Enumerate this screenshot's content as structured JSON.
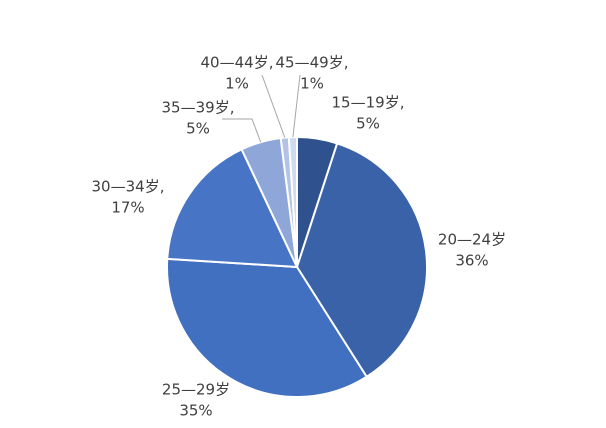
{
  "chart_data": {
    "type": "pie",
    "categories": [
      "15—19岁,",
      "20—24岁",
      "25—29岁",
      "30—34岁,",
      "35—39岁,",
      "40—44岁,",
      "45—49岁,"
    ],
    "values": [
      5,
      36,
      35,
      17,
      5,
      1,
      1
    ],
    "value_labels": [
      "5%",
      "36%",
      "35%",
      "17%",
      "5%",
      "1%",
      "1%"
    ],
    "colors": [
      "#2f528f",
      "#3a62a8",
      "#4270c0",
      "#4874c6",
      "#8ea6d8",
      "#b2c3e6",
      "#cfdbf0"
    ]
  }
}
